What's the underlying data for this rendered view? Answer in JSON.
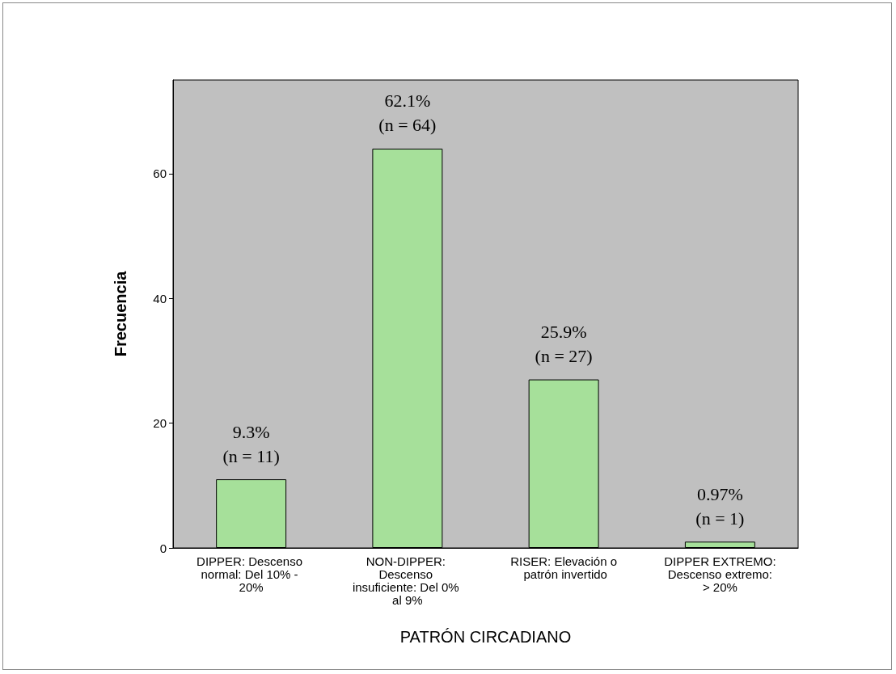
{
  "chart_data": {
    "type": "bar",
    "xlabel": "PATRÓN CIRCADIANO",
    "ylabel": "Frecuencia",
    "categories": [
      "DIPPER: Descenso normal: Del 10% - 20%",
      "NON-DIPPER: Descenso insuficiente: Del 0% al 9%",
      "RISER: Elevación o patrón invertido",
      "DIPPER EXTREMO: Descenso extremo: > 20%"
    ],
    "values": [
      11,
      64,
      27,
      1
    ],
    "value_labels": [
      "9.3%\n(n = 11)",
      "62.1%\n(n = 64)",
      "25.9%\n(n = 27)",
      "0.97%\n(n = 1)"
    ],
    "color": "#a6e09a",
    "ylim": [
      0,
      75
    ],
    "yticks": [
      0,
      20,
      40,
      60
    ],
    "grid": false
  }
}
